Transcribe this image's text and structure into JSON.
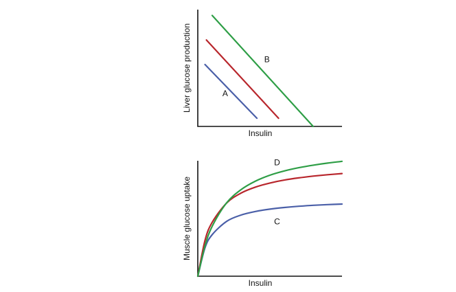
{
  "chart_data": [
    {
      "type": "line",
      "title": "",
      "xlabel": "Insulin",
      "ylabel": "Liver glucose production",
      "xlim": [
        0,
        10
      ],
      "ylim": [
        0,
        10
      ],
      "grid": false,
      "series": [
        {
          "name": "",
          "color": "#4a5fa8",
          "x": [
            0.5,
            4.1
          ],
          "y": [
            5.3,
            0.7
          ]
        },
        {
          "name": "",
          "color": "#b8262c",
          "x": [
            0.6,
            5.6
          ],
          "y": [
            7.4,
            0.7
          ]
        },
        {
          "name": "",
          "color": "#2e9e46",
          "x": [
            1.0,
            8.0
          ],
          "y": [
            9.5,
            0.0
          ]
        }
      ],
      "annotations": [
        {
          "text": "A",
          "x": 1.9,
          "y": 2.6
        },
        {
          "text": "B",
          "x": 4.8,
          "y": 5.5
        }
      ]
    },
    {
      "type": "line",
      "title": "",
      "xlabel": "Insulin",
      "ylabel": "Muscle glucose uptake",
      "xlim": [
        0,
        10
      ],
      "ylim": [
        0,
        10
      ],
      "grid": false,
      "series": [
        {
          "name": "",
          "color": "#4a5fa8",
          "x": [
            0,
            0.5,
            1,
            2,
            3,
            4,
            5,
            6,
            7,
            8,
            9,
            10
          ],
          "y": [
            0,
            2.46,
            3.6,
            4.75,
            5.3,
            5.61,
            5.81,
            5.95,
            6.06,
            6.14,
            6.2,
            6.25
          ]
        },
        {
          "name": "",
          "color": "#b8262c",
          "x": [
            0,
            0.5,
            1,
            2,
            3,
            4,
            5,
            6,
            7,
            8,
            9,
            10
          ],
          "y": [
            0,
            3.1,
            4.67,
            6.34,
            7.2,
            7.72,
            8.07,
            8.33,
            8.52,
            8.67,
            8.79,
            8.89
          ]
        },
        {
          "name": "",
          "color": "#2e9e46",
          "x": [
            0,
            0.5,
            1,
            2,
            3,
            4,
            5,
            6,
            7,
            8,
            9,
            10
          ],
          "y": [
            0,
            2.63,
            4.33,
            6.36,
            7.5,
            8.24,
            8.75,
            9.12,
            9.4,
            9.62,
            9.8,
            9.95
          ]
        }
      ],
      "annotations": [
        {
          "text": "D",
          "x": 5.5,
          "y": 9.6
        },
        {
          "text": "C",
          "x": 5.5,
          "y": 4.5
        }
      ]
    }
  ]
}
